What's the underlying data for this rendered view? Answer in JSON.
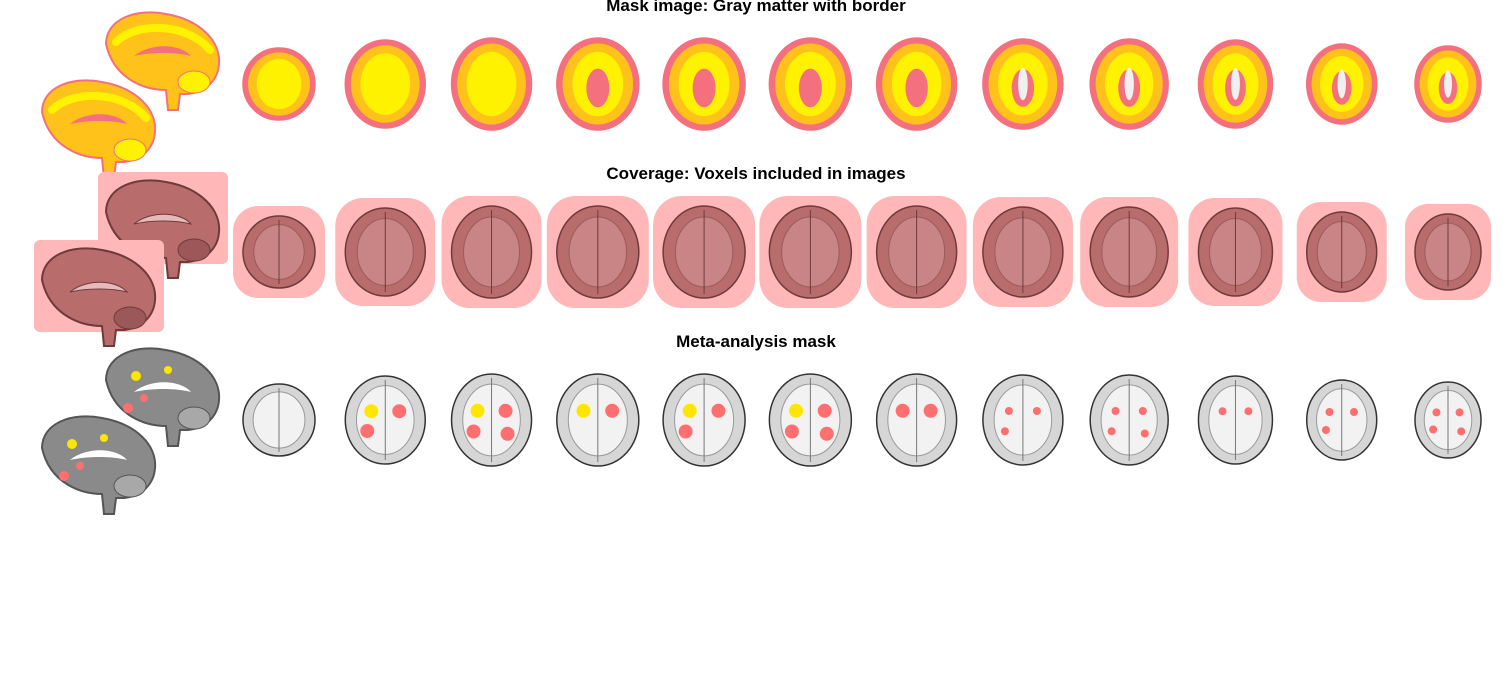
{
  "rows": [
    {
      "title": "Mask image: Gray matter with border",
      "style": "mask"
    },
    {
      "title": "Coverage: Voxels included in images",
      "style": "coverage"
    },
    {
      "title": "Meta-analysis mask",
      "style": "meta"
    }
  ],
  "colors": {
    "mask_edge": "#f4707f",
    "mask_fill": "#ffc21a",
    "mask_core": "#fff200",
    "coverage_halo": "#ffb7b7",
    "coverage_brain": "#b86c6c",
    "coverage_dark": "#6e3a3a",
    "meta_brain": "#d6d6d6",
    "meta_sagittal": "#8a8a8a",
    "meta_blob_hot": "#ffe600",
    "meta_blob_warm": "#ff6f6f"
  },
  "slice_count": 12
}
